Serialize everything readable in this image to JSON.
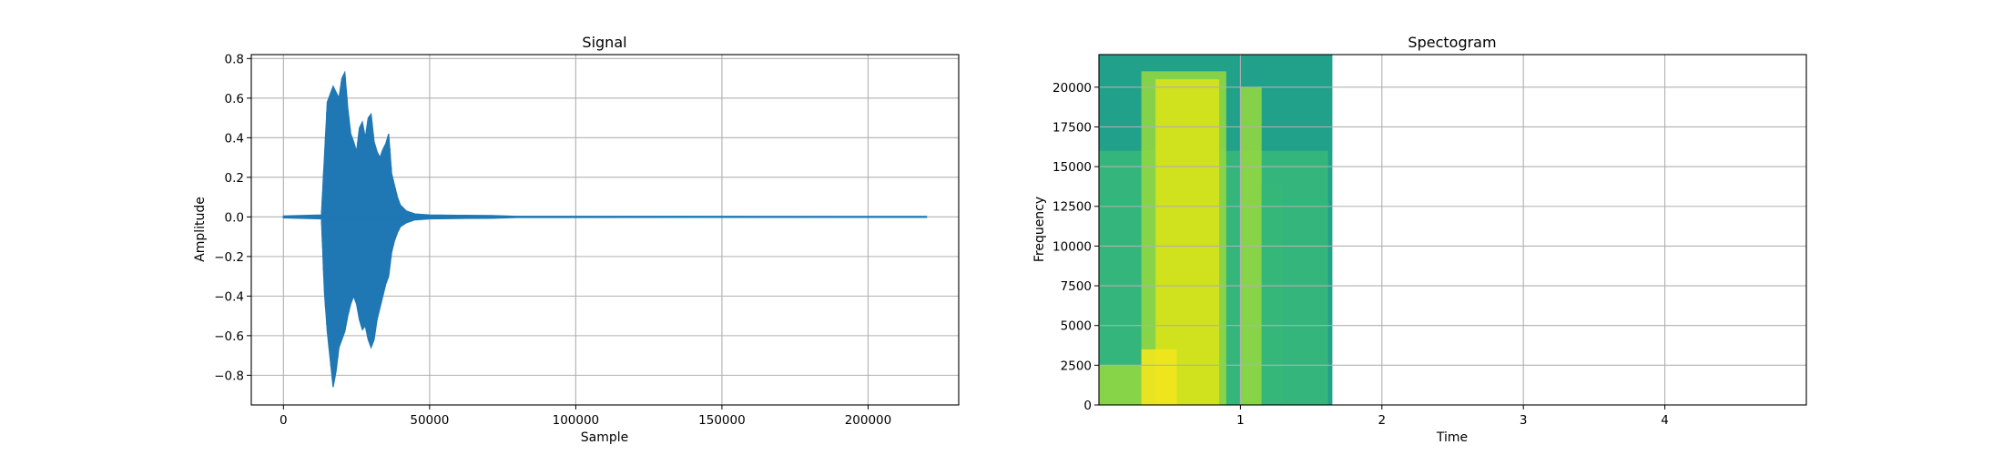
{
  "chart_data": [
    {
      "type": "line",
      "title": "Signal",
      "xlabel": "Sample",
      "ylabel": "Amplitude",
      "xlim": [
        -11000,
        231000
      ],
      "ylim": [
        -0.95,
        0.82
      ],
      "x_ticks": [
        0,
        50000,
        100000,
        150000,
        200000
      ],
      "x_tick_labels": [
        "0",
        "50000",
        "100000",
        "150000",
        "200000"
      ],
      "y_ticks": [
        -0.8,
        -0.6,
        -0.4,
        -0.2,
        0.0,
        0.2,
        0.4,
        0.6,
        0.8
      ],
      "y_tick_labels": [
        "−0.8",
        "−0.6",
        "−0.4",
        "−0.2",
        "0.0",
        "0.2",
        "0.4",
        "0.6",
        "0.8"
      ],
      "grid": true,
      "color": "#1f77b4",
      "series": [
        {
          "x": [
            0,
            13000,
            14000,
            15000,
            16000,
            17000,
            18000,
            19000,
            20000,
            21000,
            22000,
            23000,
            24000,
            25000,
            26000,
            27000,
            28000,
            29000,
            30000,
            31000,
            32000,
            33000,
            34000,
            35000,
            36000,
            37000,
            38000,
            39000,
            40000,
            42000,
            45000,
            50000,
            60000,
            71000,
            80000,
            220000
          ],
          "upper": [
            0.005,
            0.01,
            0.3,
            0.58,
            0.62,
            0.66,
            0.63,
            0.6,
            0.7,
            0.73,
            0.55,
            0.42,
            0.38,
            0.33,
            0.45,
            0.48,
            0.4,
            0.5,
            0.52,
            0.38,
            0.33,
            0.3,
            0.34,
            0.37,
            0.42,
            0.22,
            0.16,
            0.1,
            0.06,
            0.03,
            0.015,
            0.01,
            0.008,
            0.007,
            0.003,
            0.002
          ],
          "lower": [
            -0.005,
            -0.01,
            -0.38,
            -0.58,
            -0.72,
            -0.86,
            -0.78,
            -0.66,
            -0.62,
            -0.58,
            -0.5,
            -0.44,
            -0.4,
            -0.44,
            -0.52,
            -0.57,
            -0.55,
            -0.62,
            -0.66,
            -0.62,
            -0.52,
            -0.46,
            -0.4,
            -0.34,
            -0.3,
            -0.18,
            -0.12,
            -0.08,
            -0.05,
            -0.03,
            -0.015,
            -0.01,
            -0.008,
            -0.007,
            -0.003,
            -0.002
          ]
        }
      ]
    },
    {
      "type": "heatmap",
      "title": "Spectogram",
      "xlabel": "Time",
      "ylabel": "Frequency",
      "xlim": [
        0,
        5.0
      ],
      "ylim": [
        0,
        22050
      ],
      "data_xlim": [
        0,
        1.65
      ],
      "x_ticks": [
        1,
        2,
        3,
        4
      ],
      "x_tick_labels": [
        "1",
        "2",
        "3",
        "4"
      ],
      "y_ticks": [
        0,
        2500,
        5000,
        7500,
        10000,
        12500,
        15000,
        17500,
        20000
      ],
      "y_tick_labels": [
        "0",
        "2500",
        "5000",
        "7500",
        "10000",
        "12500",
        "15000",
        "17500",
        "20000"
      ],
      "grid": true,
      "colormap": "viridis",
      "colors": {
        "background": "#21a08a",
        "low": "#35b779",
        "mid": "#90d743",
        "high": "#d8e219",
        "peak": "#f2e51d"
      },
      "regions": [
        {
          "t0": 0.0,
          "t1": 1.62,
          "f0": 0,
          "f1": 16000,
          "level": "low"
        },
        {
          "t0": 0.0,
          "t1": 0.3,
          "f0": 0,
          "f1": 2500,
          "level": "mid"
        },
        {
          "t0": 0.3,
          "t1": 0.9,
          "f0": 0,
          "f1": 21000,
          "level": "mid"
        },
        {
          "t0": 0.4,
          "t1": 0.85,
          "f0": 0,
          "f1": 20500,
          "level": "high"
        },
        {
          "t0": 0.3,
          "t1": 0.55,
          "f0": 0,
          "f1": 3500,
          "level": "peak"
        },
        {
          "t0": 1.0,
          "t1": 1.15,
          "f0": 0,
          "f1": 20000,
          "level": "mid"
        },
        {
          "t0": 1.15,
          "t1": 1.3,
          "f0": 0,
          "f1": 14000,
          "level": "low"
        }
      ]
    }
  ]
}
